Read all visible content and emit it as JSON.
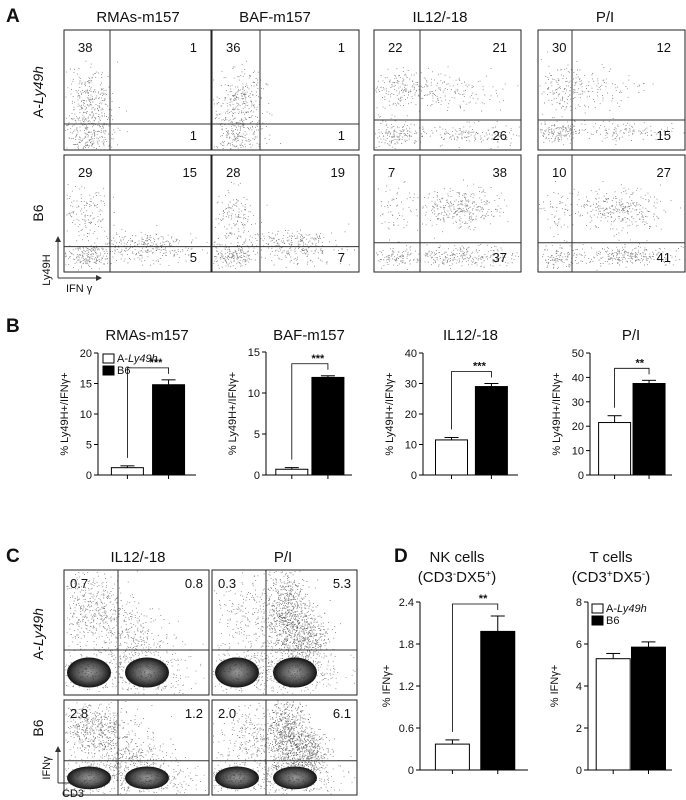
{
  "panels": {
    "a": {
      "letter": "A",
      "columns": [
        "RMAs-m157",
        "BAF-m157",
        "IL12/-18",
        "P/I"
      ],
      "rows": [
        {
          "prefix": "A-",
          "italic": "Ly49h"
        },
        {
          "prefix": "B6"
        }
      ],
      "y_axis": "Ly49H",
      "x_axis": "IFN γ",
      "quadrants": [
        [
          [
            "38",
            "1",
            "1"
          ],
          [
            "36",
            "1",
            "1"
          ],
          [
            "22",
            "21",
            "26"
          ],
          [
            "30",
            "12",
            "15"
          ]
        ],
        [
          [
            "29",
            "15",
            "5"
          ],
          [
            "28",
            "19",
            "7"
          ],
          [
            "7",
            "38",
            "37"
          ],
          [
            "10",
            "27",
            "41"
          ]
        ]
      ]
    },
    "b": {
      "letter": "B",
      "legend": [
        {
          "prefix": "A-",
          "italic": "Ly49h",
          "color": "#ffffff"
        },
        {
          "prefix": "B6",
          "italic": "",
          "color": "#000000"
        }
      ]
    },
    "c": {
      "letter": "C",
      "columns": [
        "IL12/-18",
        "P/I"
      ],
      "rows": [
        {
          "prefix": "A-",
          "italic": "Ly49h"
        },
        {
          "prefix": "B6"
        }
      ],
      "y_axis": "IFNγ",
      "x_axis": "CD3",
      "quadrants": [
        [
          [
            "0.7",
            "0.8"
          ],
          [
            "0.3",
            "5.3"
          ]
        ],
        [
          [
            "2.8",
            "1.2"
          ],
          [
            "2.0",
            "6.1"
          ]
        ]
      ]
    },
    "d": {
      "letter": "D",
      "charts": [
        {
          "title": "NK cells",
          "sub1": "(CD3",
          "sup1": "-",
          "sub2": "DX5",
          "sup2": "+",
          "sub3": ")"
        },
        {
          "title": "T cells",
          "sub1": "(CD3",
          "sup1": "+",
          "sub2": "DX5",
          "sup2": "-",
          "sub3": ")"
        }
      ],
      "legend": [
        {
          "prefix": "A-",
          "italic": "Ly49h",
          "color": "#ffffff"
        },
        {
          "prefix": "B6",
          "italic": "",
          "color": "#000000"
        }
      ]
    }
  },
  "chart_data": [
    {
      "type": "bar",
      "title": "RMAs-m157",
      "ylabel": "% Ly49H+/IFNγ+",
      "categories": [
        "A-Ly49h",
        "B6"
      ],
      "values": [
        1.2,
        14.8
      ],
      "errors": [
        0.3,
        0.8
      ],
      "ylim": [
        0,
        20
      ],
      "yticks": [
        "0",
        "5",
        "10",
        "15",
        "20"
      ],
      "significance": "***",
      "legend": "top-left",
      "grid": false
    },
    {
      "type": "bar",
      "title": "BAF-m157",
      "ylabel": "% Ly49H+/IFNγ+",
      "categories": [
        "A-Ly49h",
        "B6"
      ],
      "values": [
        0.7,
        11.9
      ],
      "errors": [
        0.2,
        0.2
      ],
      "ylim": [
        0,
        15
      ],
      "yticks": [
        "0",
        "5",
        "10",
        "15"
      ],
      "significance": "***",
      "grid": false
    },
    {
      "type": "bar",
      "title": "IL12/-18",
      "ylabel": "% Ly49H+/IFNγ+",
      "categories": [
        "A-Ly49h",
        "B6"
      ],
      "values": [
        11.5,
        29.0
      ],
      "errors": [
        0.8,
        1.0
      ],
      "ylim": [
        0,
        40
      ],
      "yticks": [
        "0",
        "10",
        "20",
        "30",
        "40"
      ],
      "significance": "***",
      "grid": false
    },
    {
      "type": "bar",
      "title": "P/I",
      "ylabel": "% Ly49H+/IFNγ+",
      "categories": [
        "A-Ly49h",
        "B6"
      ],
      "values": [
        21.5,
        37.5
      ],
      "errors": [
        2.8,
        1.3
      ],
      "ylim": [
        0,
        50
      ],
      "yticks": [
        "0",
        "10",
        "20",
        "30",
        "40",
        "50"
      ],
      "significance": "**",
      "grid": false
    },
    {
      "type": "bar",
      "title": "NK cells",
      "ylabel": "% IFNγ+",
      "categories": [
        "A-Ly49h",
        "B6"
      ],
      "values": [
        0.37,
        1.98
      ],
      "errors": [
        0.06,
        0.22
      ],
      "ylim": [
        0,
        2.4
      ],
      "yticks": [
        "0",
        "0.6",
        "1.2",
        "1.8",
        "2.4"
      ],
      "significance": "**",
      "grid": false
    },
    {
      "type": "bar",
      "title": "T cells",
      "ylabel": "% IFNγ+",
      "categories": [
        "A-Ly49h",
        "B6"
      ],
      "values": [
        5.3,
        5.85
      ],
      "errors": [
        0.25,
        0.25
      ],
      "ylim": [
        0,
        8
      ],
      "yticks": [
        "0",
        "2",
        "4",
        "6",
        "8"
      ],
      "significance": "",
      "legend": "top-left",
      "grid": false
    }
  ]
}
